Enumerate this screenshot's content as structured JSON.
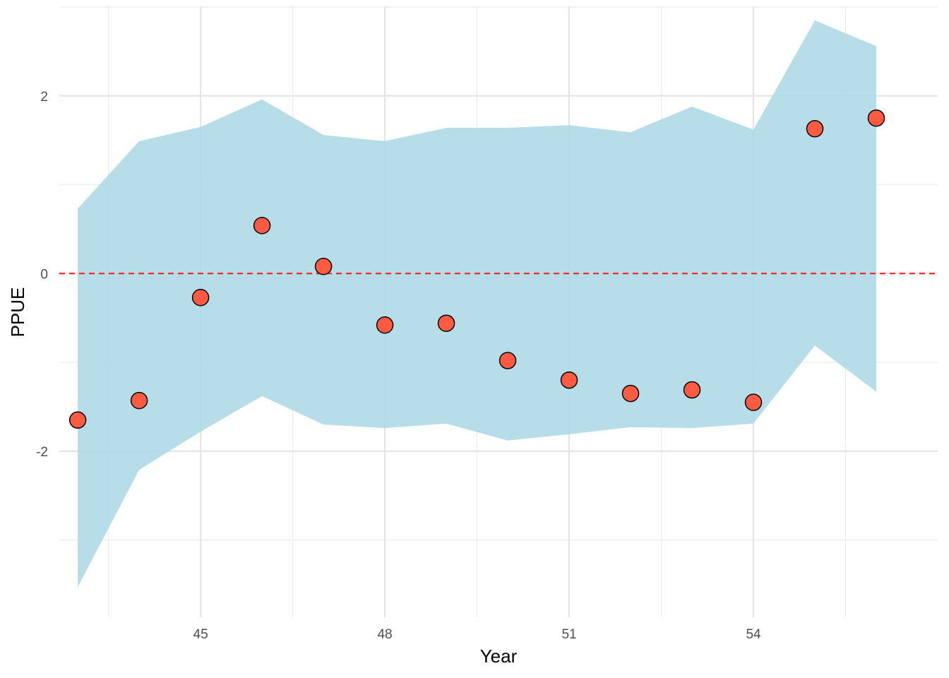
{
  "chart_data": {
    "type": "scatter",
    "title": "",
    "xlabel": "Year",
    "ylabel": "PPUE",
    "xlim": [
      42.7,
      57.0
    ],
    "ylim": [
      -3.87,
      3.0
    ],
    "x_ticks": [
      45,
      48,
      51,
      54
    ],
    "x_tick_labels": [
      "45",
      "48",
      "51",
      "54"
    ],
    "y_ticks": [
      -2,
      0,
      2
    ],
    "y_tick_labels": [
      "-2",
      "0",
      "2"
    ],
    "grid": true,
    "legend": "none",
    "reference_line": {
      "y": 0,
      "style": "dashed",
      "color": "#ff0000"
    },
    "band": {
      "name": "interval",
      "color": "#add8e6",
      "x": [
        43,
        44,
        45,
        46,
        47,
        48,
        49,
        50,
        51,
        52,
        53,
        54,
        55,
        56
      ],
      "upper": [
        0.73,
        1.49,
        1.65,
        1.96,
        1.56,
        1.49,
        1.64,
        1.64,
        1.67,
        1.59,
        1.88,
        1.62,
        2.85,
        2.56
      ],
      "lower": [
        -3.53,
        -2.21,
        -1.78,
        -1.38,
        -1.7,
        -1.74,
        -1.69,
        -1.88,
        -1.81,
        -1.73,
        -1.74,
        -1.69,
        -0.81,
        -1.33
      ]
    },
    "series": [
      {
        "color": "#ff5a42",
        "x": [
          43,
          44,
          45,
          46,
          47,
          48,
          49,
          50,
          51,
          52,
          53,
          54,
          55,
          56
        ],
        "y": [
          -1.65,
          -1.43,
          -0.27,
          0.54,
          0.08,
          -0.58,
          -0.56,
          -0.98,
          -1.2,
          -1.35,
          -1.31,
          -1.45,
          1.63,
          1.75
        ]
      }
    ]
  }
}
